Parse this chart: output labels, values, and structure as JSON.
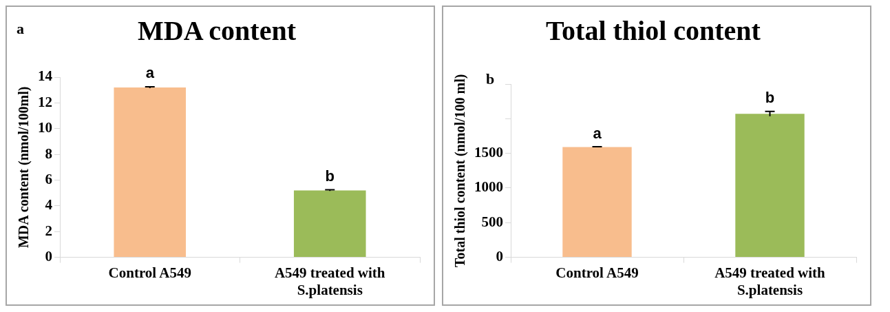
{
  "chart_data": [
    {
      "type": "bar",
      "title": "MDA content",
      "ylabel": "MDA content (nmol/100ml)",
      "categories": [
        "Control A549",
        "A549 treated with S.platensis"
      ],
      "values": [
        13.2,
        5.2
      ],
      "errors": [
        0.05,
        0.05
      ],
      "colors": [
        "#f8bd8d",
        "#9bbb59"
      ],
      "ylim": [
        0,
        14
      ],
      "yticks": [
        0,
        2,
        4,
        6,
        8,
        10,
        12,
        14
      ],
      "grid": false,
      "legend": false,
      "annotations": [
        "a",
        {
          "text": "a",
          "x": "Control A549",
          "y": 13.25
        },
        {
          "text": "b",
          "x": "A549 treated with S.platensis",
          "y": 5.25
        }
      ]
    },
    {
      "type": "bar",
      "title": "Total thiol content",
      "ylabel": "Total thiol content (nmol/100 ml)",
      "categories": [
        "Control A549",
        "A549 treated with S.platensis"
      ],
      "values": [
        1590,
        2070
      ],
      "errors": [
        5,
        35
      ],
      "colors": [
        "#f8bd8d",
        "#9bbb59"
      ],
      "ylim": [
        0,
        2500
      ],
      "yticks": [
        0,
        500,
        1000,
        1500,
        {
          "value": 2000,
          "label": null
        },
        {
          "value": 2500,
          "label": null
        }
      ],
      "grid": false,
      "legend": false,
      "annotations": [
        "b",
        {
          "text": "a",
          "x": "Control A549",
          "y": 1590
        },
        {
          "text": "b",
          "x": "A549 treated with S.platensis",
          "y": 2102
        }
      ]
    }
  ]
}
